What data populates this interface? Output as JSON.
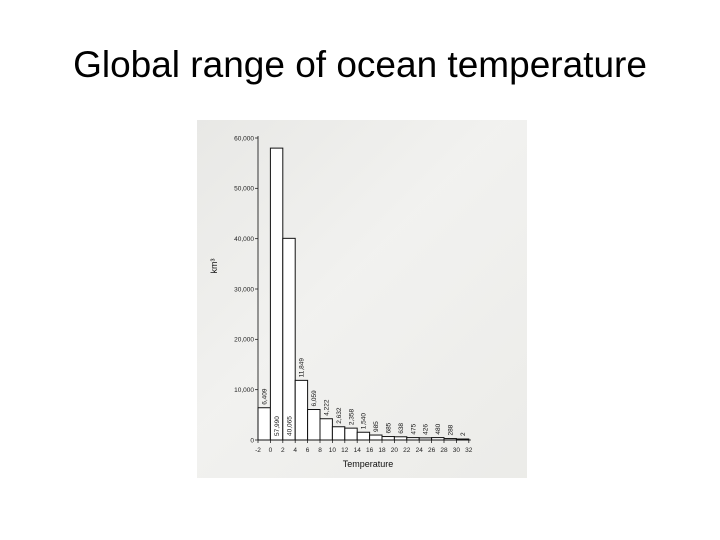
{
  "slide": {
    "title": "Global range of ocean temperature"
  },
  "chart_data": {
    "type": "bar",
    "title": "",
    "xlabel": "Temperature",
    "ylabel": "km³",
    "ylim": [
      0,
      60000
    ],
    "yticks": [
      "0",
      "10,000",
      "20,000",
      "30,000",
      "40,000",
      "50,000",
      "60,000"
    ],
    "xticks": [
      "-2",
      "0",
      "2",
      "4",
      "6",
      "8",
      "10",
      "12",
      "14",
      "16",
      "18",
      "20",
      "22",
      "24",
      "26",
      "28",
      "30",
      "32"
    ],
    "categories": [
      "-2–0",
      "0–2",
      "2–4",
      "4–6",
      "6–8",
      "8–10",
      "10–12",
      "12–14",
      "14–16",
      "16–18",
      "18–20",
      "20–22",
      "22–24",
      "24–26",
      "26–28",
      "28–30",
      "30–32"
    ],
    "values": [
      6409,
      57990,
      40065,
      11849,
      6059,
      4222,
      2632,
      2358,
      1540,
      985,
      685,
      638,
      475,
      426,
      480,
      288,
      2
    ],
    "value_labels": [
      "6,409",
      "57,990",
      "40,065",
      "11,849",
      "6,059",
      "4,222",
      "2,632",
      "2,358",
      "1,540",
      "985",
      "685",
      "638",
      "475",
      "426",
      "480",
      "288",
      "2"
    ],
    "bar_fill": "#ffffff",
    "bar_stroke": "#111111",
    "grid": false
  }
}
